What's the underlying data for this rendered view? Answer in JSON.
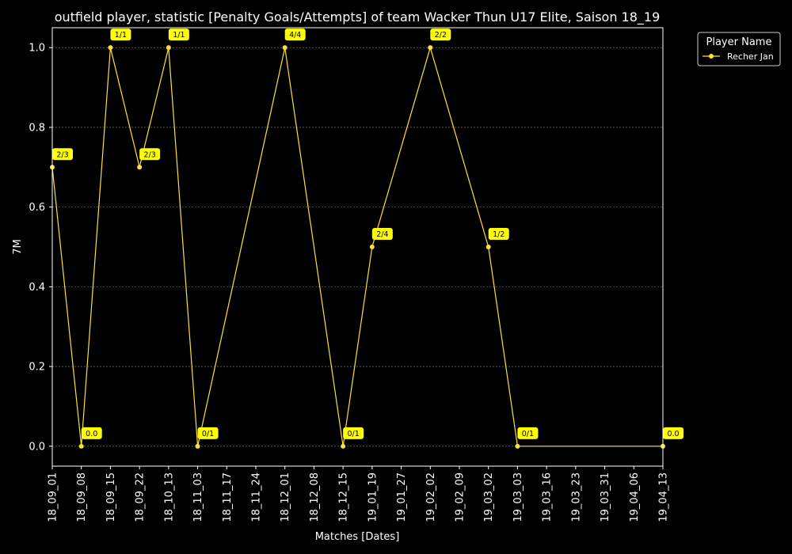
{
  "chart_data": {
    "type": "line",
    "title": "outfield player, statistic [Penalty Goals/Attempts] of team Wacker Thun U17 Elite, Saison 18_19",
    "xlabel": "Matches [Dates]",
    "ylabel": "7M",
    "ylim": [
      -0.05,
      1.05
    ],
    "yticks": [
      0.0,
      0.2,
      0.4,
      0.6,
      0.8,
      1.0
    ],
    "ytick_labels": [
      "0.0",
      "0.2",
      "0.4",
      "0.6",
      "0.8",
      "1.0"
    ],
    "categories": [
      "18_09_01",
      "18_09_08",
      "18_09_15",
      "18_09_22",
      "18_10_13",
      "18_11_03",
      "18_11_17",
      "18_11_24",
      "18_12_01",
      "18_12_08",
      "18_12_15",
      "19_01_19",
      "19_01_27",
      "19_02_02",
      "19_02_09",
      "19_03_02",
      "19_03_03",
      "19_03_16",
      "19_03_23",
      "19_03_31",
      "19_04_06",
      "19_04_13"
    ],
    "grid": true,
    "legend": {
      "title": "Player Name",
      "position": "outside-top-right"
    },
    "series": [
      {
        "name": "Recher Jan",
        "color": "#ffe135",
        "values": [
          0.7,
          0.0,
          1.0,
          0.7,
          1.0,
          0.0,
          null,
          null,
          1.0,
          null,
          0.0,
          0.5,
          null,
          1.0,
          null,
          0.5,
          0.0,
          null,
          null,
          null,
          null,
          0.0
        ],
        "labels": [
          "2/3",
          "0.0",
          "1/1",
          "2/3",
          "1/1",
          "0/1",
          null,
          null,
          "4/4",
          null,
          "0/1",
          "2/4",
          null,
          "2/2",
          null,
          "1/2",
          "0/1",
          null,
          null,
          null,
          null,
          "0.0"
        ]
      }
    ]
  },
  "colors": {
    "background": "#000000",
    "foreground": "#ffffff",
    "grid": "#888888",
    "label_box": "#ffff00",
    "label_text": "#000000"
  }
}
